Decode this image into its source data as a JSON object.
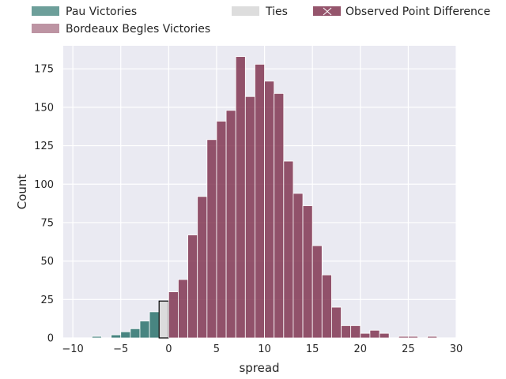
{
  "chart_data": {
    "type": "bar",
    "xlabel": "spread",
    "ylabel": "Count",
    "xlim": [
      -11,
      30
    ],
    "ylim": [
      0,
      190
    ],
    "xticks": [
      -10,
      -5,
      0,
      5,
      10,
      15,
      20,
      25,
      30
    ],
    "yticks": [
      0,
      25,
      50,
      75,
      100,
      125,
      150,
      175
    ],
    "grid": true,
    "legend_position": "top",
    "legend": [
      {
        "label": "Pau Victories",
        "color": "#1f6b64"
      },
      {
        "label": "Bordeaux Begles Victories",
        "color": "#7b2a47"
      },
      {
        "label": "Ties",
        "color": "#d9d9d9"
      },
      {
        "label": "Observed Point Difference",
        "color": "#7b2a47"
      }
    ],
    "bin_width": 1,
    "series": [
      {
        "name": "Pau Victories",
        "color": "#1f6b64",
        "bins": [
          {
            "x0": -9,
            "count": 0
          },
          {
            "x0": -8,
            "count": 1
          },
          {
            "x0": -7,
            "count": 0
          },
          {
            "x0": -6,
            "count": 2
          },
          {
            "x0": -5,
            "count": 4
          },
          {
            "x0": -4,
            "count": 6
          },
          {
            "x0": -3,
            "count": 11
          },
          {
            "x0": -2,
            "count": 17
          }
        ]
      },
      {
        "name": "Ties",
        "color": "#d9d9d9",
        "bins": [
          {
            "x0": -1,
            "count": 24
          }
        ]
      },
      {
        "name": "Bordeaux Begles Victories",
        "color": "#7b2a47",
        "bins": [
          {
            "x0": 0,
            "count": 30
          },
          {
            "x0": 1,
            "count": 38
          },
          {
            "x0": 2,
            "count": 67
          },
          {
            "x0": 3,
            "count": 92
          },
          {
            "x0": 4,
            "count": 129
          },
          {
            "x0": 5,
            "count": 141
          },
          {
            "x0": 6,
            "count": 148
          },
          {
            "x0": 7,
            "count": 183
          },
          {
            "x0": 8,
            "count": 157
          },
          {
            "x0": 9,
            "count": 178
          },
          {
            "x0": 10,
            "count": 167
          },
          {
            "x0": 11,
            "count": 159
          },
          {
            "x0": 12,
            "count": 115
          },
          {
            "x0": 13,
            "count": 94
          },
          {
            "x0": 14,
            "count": 86
          },
          {
            "x0": 15,
            "count": 60
          },
          {
            "x0": 16,
            "count": 41
          },
          {
            "x0": 17,
            "count": 20
          },
          {
            "x0": 18,
            "count": 8
          },
          {
            "x0": 19,
            "count": 8
          },
          {
            "x0": 20,
            "count": 3
          },
          {
            "x0": 21,
            "count": 5
          },
          {
            "x0": 22,
            "count": 3
          },
          {
            "x0": 23,
            "count": 0
          },
          {
            "x0": 24,
            "count": 1
          },
          {
            "x0": 25,
            "count": 1
          },
          {
            "x0": 26,
            "count": 0
          },
          {
            "x0": 27,
            "count": 1
          }
        ]
      }
    ]
  }
}
